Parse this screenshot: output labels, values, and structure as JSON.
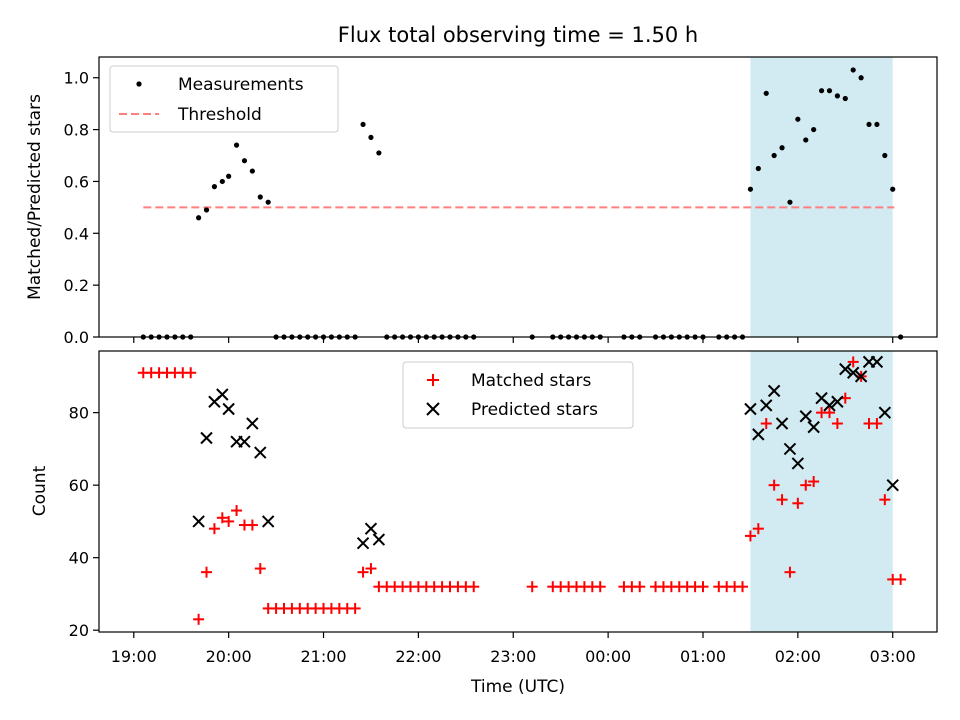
{
  "title": "Flux total observing time = 1.50 h",
  "xlabel": "Time (UTC)",
  "colors": {
    "measurement": "#000000",
    "threshold": "#ff7f7f",
    "matched": "#ff0000",
    "predicted": "#000000",
    "highlight": "#add8e6"
  },
  "chart_data": [
    {
      "type": "scatter",
      "ylabel": "Matched/Predicted stars",
      "ylim": [
        0,
        1.08
      ],
      "yticks": [
        0.0,
        0.2,
        0.4,
        0.6,
        0.8,
        1.0
      ],
      "yticklabels": [
        "0.0",
        "0.2",
        "0.4",
        "0.6",
        "0.8",
        "1.0"
      ],
      "legend_position": "upper-left",
      "threshold": {
        "name": "Threshold",
        "value": 0.5,
        "x_start": "19:06",
        "x_end": "03:01"
      },
      "highlight": {
        "x_start": "01:30",
        "x_end": "03:00"
      },
      "series": [
        {
          "name": "Measurements",
          "points": [
            [
              "19:06",
              0
            ],
            [
              "19:11",
              0
            ],
            [
              "19:16",
              0
            ],
            [
              "19:21",
              0
            ],
            [
              "19:26",
              0
            ],
            [
              "19:31",
              0
            ],
            [
              "19:36",
              0
            ],
            [
              "19:41",
              0.46
            ],
            [
              "19:46",
              0.49
            ],
            [
              "19:51",
              0.58
            ],
            [
              "19:56",
              0.6
            ],
            [
              "20:00",
              0.62
            ],
            [
              "20:05",
              0.74
            ],
            [
              "20:10",
              0.68
            ],
            [
              "20:15",
              0.64
            ],
            [
              "20:20",
              0.54
            ],
            [
              "20:25",
              0.52
            ],
            [
              "20:30",
              0
            ],
            [
              "20:35",
              0
            ],
            [
              "20:40",
              0
            ],
            [
              "20:45",
              0
            ],
            [
              "20:50",
              0
            ],
            [
              "20:55",
              0
            ],
            [
              "21:00",
              0
            ],
            [
              "21:05",
              0
            ],
            [
              "21:10",
              0
            ],
            [
              "21:15",
              0
            ],
            [
              "21:20",
              0
            ],
            [
              "21:25",
              0.82
            ],
            [
              "21:30",
              0.77
            ],
            [
              "21:35",
              0.71
            ],
            [
              "21:40",
              0
            ],
            [
              "21:45",
              0
            ],
            [
              "21:50",
              0
            ],
            [
              "21:55",
              0
            ],
            [
              "22:00",
              0
            ],
            [
              "22:05",
              0
            ],
            [
              "22:10",
              0
            ],
            [
              "22:15",
              0
            ],
            [
              "22:20",
              0
            ],
            [
              "22:25",
              0
            ],
            [
              "22:30",
              0
            ],
            [
              "22:35",
              0
            ],
            [
              "23:12",
              0
            ],
            [
              "23:25",
              0
            ],
            [
              "23:30",
              0
            ],
            [
              "23:35",
              0
            ],
            [
              "23:40",
              0
            ],
            [
              "23:45",
              0
            ],
            [
              "23:50",
              0
            ],
            [
              "23:55",
              0
            ],
            [
              "00:10",
              0
            ],
            [
              "00:15",
              0
            ],
            [
              "00:20",
              0
            ],
            [
              "00:30",
              0
            ],
            [
              "00:35",
              0
            ],
            [
              "00:40",
              0
            ],
            [
              "00:45",
              0
            ],
            [
              "00:50",
              0
            ],
            [
              "00:55",
              0
            ],
            [
              "01:00",
              0
            ],
            [
              "01:10",
              0
            ],
            [
              "01:15",
              0
            ],
            [
              "01:20",
              0
            ],
            [
              "01:25",
              0
            ],
            [
              "01:30",
              0.57
            ],
            [
              "01:35",
              0.65
            ],
            [
              "01:40",
              0.94
            ],
            [
              "01:45",
              0.7
            ],
            [
              "01:50",
              0.73
            ],
            [
              "01:55",
              0.52
            ],
            [
              "02:00",
              0.84
            ],
            [
              "02:05",
              0.76
            ],
            [
              "02:10",
              0.8
            ],
            [
              "02:15",
              0.95
            ],
            [
              "02:20",
              0.95
            ],
            [
              "02:25",
              0.93
            ],
            [
              "02:30",
              0.92
            ],
            [
              "02:35",
              1.03
            ],
            [
              "02:40",
              1.0
            ],
            [
              "02:45",
              0.82
            ],
            [
              "02:50",
              0.82
            ],
            [
              "02:55",
              0.7
            ],
            [
              "03:00",
              0.57
            ],
            [
              "03:05",
              0
            ]
          ]
        }
      ]
    },
    {
      "type": "scatter",
      "ylabel": "Count",
      "ylim": [
        19.5,
        97
      ],
      "yticks": [
        20,
        40,
        60,
        80
      ],
      "yticklabels": [
        "20",
        "40",
        "60",
        "80"
      ],
      "legend_position": "upper-center",
      "highlight": {
        "x_start": "01:30",
        "x_end": "03:00"
      },
      "xlim": [
        "18:38",
        "03:28"
      ],
      "xticks": [
        "19:00",
        "20:00",
        "21:00",
        "22:00",
        "23:00",
        "00:00",
        "01:00",
        "02:00",
        "03:00"
      ],
      "series": [
        {
          "name": "Matched stars",
          "marker": "plus",
          "points": [
            [
              "19:06",
              91
            ],
            [
              "19:11",
              91
            ],
            [
              "19:16",
              91
            ],
            [
              "19:21",
              91
            ],
            [
              "19:26",
              91
            ],
            [
              "19:31",
              91
            ],
            [
              "19:36",
              91
            ],
            [
              "19:41",
              23
            ],
            [
              "19:46",
              36
            ],
            [
              "19:51",
              48
            ],
            [
              "19:56",
              51
            ],
            [
              "20:00",
              50
            ],
            [
              "20:05",
              53
            ],
            [
              "20:10",
              49
            ],
            [
              "20:15",
              49
            ],
            [
              "20:20",
              37
            ],
            [
              "20:25",
              26
            ],
            [
              "20:30",
              26
            ],
            [
              "20:35",
              26
            ],
            [
              "20:40",
              26
            ],
            [
              "20:45",
              26
            ],
            [
              "20:50",
              26
            ],
            [
              "20:55",
              26
            ],
            [
              "21:00",
              26
            ],
            [
              "21:05",
              26
            ],
            [
              "21:10",
              26
            ],
            [
              "21:15",
              26
            ],
            [
              "21:20",
              26
            ],
            [
              "21:25",
              36
            ],
            [
              "21:30",
              37
            ],
            [
              "21:35",
              32
            ],
            [
              "21:40",
              32
            ],
            [
              "21:45",
              32
            ],
            [
              "21:50",
              32
            ],
            [
              "21:55",
              32
            ],
            [
              "22:00",
              32
            ],
            [
              "22:05",
              32
            ],
            [
              "22:10",
              32
            ],
            [
              "22:15",
              32
            ],
            [
              "22:20",
              32
            ],
            [
              "22:25",
              32
            ],
            [
              "22:30",
              32
            ],
            [
              "22:35",
              32
            ],
            [
              "23:12",
              32
            ],
            [
              "23:25",
              32
            ],
            [
              "23:30",
              32
            ],
            [
              "23:35",
              32
            ],
            [
              "23:40",
              32
            ],
            [
              "23:45",
              32
            ],
            [
              "23:50",
              32
            ],
            [
              "23:55",
              32
            ],
            [
              "00:10",
              32
            ],
            [
              "00:15",
              32
            ],
            [
              "00:20",
              32
            ],
            [
              "00:30",
              32
            ],
            [
              "00:35",
              32
            ],
            [
              "00:40",
              32
            ],
            [
              "00:45",
              32
            ],
            [
              "00:50",
              32
            ],
            [
              "00:55",
              32
            ],
            [
              "01:00",
              32
            ],
            [
              "01:10",
              32
            ],
            [
              "01:15",
              32
            ],
            [
              "01:20",
              32
            ],
            [
              "01:25",
              32
            ],
            [
              "01:30",
              46
            ],
            [
              "01:35",
              48
            ],
            [
              "01:40",
              77
            ],
            [
              "01:45",
              60
            ],
            [
              "01:50",
              56
            ],
            [
              "01:55",
              36
            ],
            [
              "02:00",
              55
            ],
            [
              "02:05",
              60
            ],
            [
              "02:10",
              61
            ],
            [
              "02:15",
              80
            ],
            [
              "02:20",
              80
            ],
            [
              "02:25",
              77
            ],
            [
              "02:30",
              84
            ],
            [
              "02:35",
              94
            ],
            [
              "02:40",
              90
            ],
            [
              "02:45",
              77
            ],
            [
              "02:50",
              77
            ],
            [
              "02:55",
              56
            ],
            [
              "03:00",
              34
            ],
            [
              "03:05",
              34
            ]
          ]
        },
        {
          "name": "Predicted stars",
          "marker": "x",
          "points": [
            [
              "19:41",
              50
            ],
            [
              "19:46",
              73
            ],
            [
              "19:51",
              83
            ],
            [
              "19:56",
              85
            ],
            [
              "20:00",
              81
            ],
            [
              "20:05",
              72
            ],
            [
              "20:10",
              72
            ],
            [
              "20:15",
              77
            ],
            [
              "20:20",
              69
            ],
            [
              "20:25",
              50
            ],
            [
              "21:25",
              44
            ],
            [
              "21:30",
              48
            ],
            [
              "21:35",
              45
            ],
            [
              "01:30",
              81
            ],
            [
              "01:35",
              74
            ],
            [
              "01:40",
              82
            ],
            [
              "01:45",
              86
            ],
            [
              "01:50",
              77
            ],
            [
              "01:55",
              70
            ],
            [
              "02:00",
              66
            ],
            [
              "02:05",
              79
            ],
            [
              "02:10",
              76
            ],
            [
              "02:15",
              84
            ],
            [
              "02:20",
              82
            ],
            [
              "02:25",
              83
            ],
            [
              "02:30",
              92
            ],
            [
              "02:35",
              91
            ],
            [
              "02:40",
              90
            ],
            [
              "02:45",
              94
            ],
            [
              "02:50",
              94
            ],
            [
              "02:55",
              80
            ],
            [
              "03:00",
              60
            ]
          ]
        }
      ]
    }
  ]
}
